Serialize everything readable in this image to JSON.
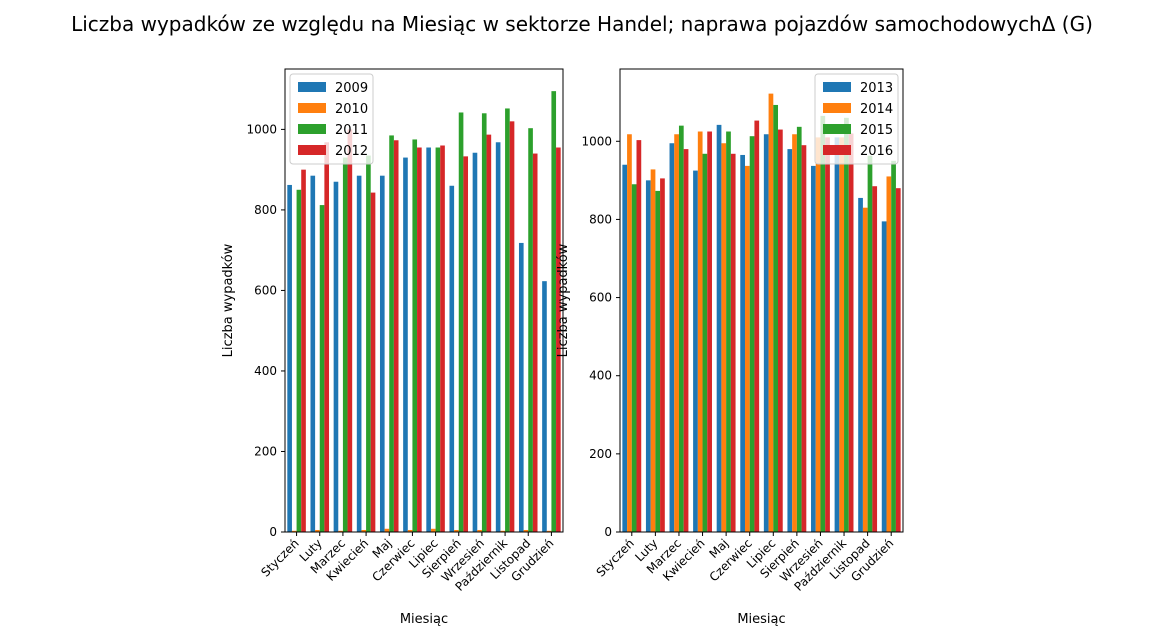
{
  "title": "Liczba wypadków ze względu na Miesiąc w sektorze Handel; naprawa pojazdów samochodowychΔ  (G)",
  "colors": {
    "2009": "#1f77b4",
    "2010": "#ff7f0e",
    "2011": "#2ca02c",
    "2012": "#d62728",
    "2013": "#1f77b4",
    "2014": "#ff7f0e",
    "2015": "#2ca02c",
    "2016": "#d62728"
  },
  "chart_data": [
    {
      "type": "bar",
      "xlabel": "Miesiąc",
      "ylabel": "Liczba wypadków",
      "ylim": [
        0,
        1150
      ],
      "yticks": [
        0,
        200,
        400,
        600,
        800,
        1000
      ],
      "legend_position": "top-left",
      "categories": [
        "Styczeń",
        "Luty",
        "Marzec",
        "Kwiecień",
        "Maj",
        "Czerwiec",
        "Lipiec",
        "Sierpień",
        "Wrzesień",
        "Październik",
        "Listopad",
        "Grudzień"
      ],
      "series": [
        {
          "name": "2009",
          "color": "#1f77b4",
          "values": [
            862,
            885,
            870,
            885,
            885,
            930,
            955,
            860,
            942,
            968,
            718,
            623
          ]
        },
        {
          "name": "2010",
          "color": "#ff7f0e",
          "values": [
            3,
            5,
            3,
            5,
            8,
            5,
            8,
            5,
            5,
            3,
            5,
            3
          ]
        },
        {
          "name": "2011",
          "color": "#2ca02c",
          "values": [
            850,
            812,
            930,
            935,
            985,
            975,
            955,
            1042,
            1040,
            1052,
            1003,
            1095
          ]
        },
        {
          "name": "2012",
          "color": "#d62728",
          "values": [
            900,
            968,
            1000,
            843,
            973,
            955,
            960,
            933,
            987,
            1020,
            940,
            955
          ]
        }
      ]
    },
    {
      "type": "bar",
      "xlabel": "Miesiąc",
      "ylabel": "Liczba wypadków",
      "ylim": [
        0,
        1185
      ],
      "yticks": [
        0,
        200,
        400,
        600,
        800,
        1000
      ],
      "legend_position": "top-right",
      "categories": [
        "Styczeń",
        "Luty",
        "Marzec",
        "Kwiecień",
        "Maj",
        "Czerwiec",
        "Lipiec",
        "Sierpień",
        "Wrzesień",
        "Październik",
        "Listopad",
        "Grudzień"
      ],
      "series": [
        {
          "name": "2013",
          "color": "#1f77b4",
          "values": [
            940,
            900,
            995,
            925,
            1042,
            965,
            1018,
            980,
            937,
            1010,
            855,
            795
          ]
        },
        {
          "name": "2014",
          "color": "#ff7f0e",
          "values": [
            1018,
            928,
            1018,
            1025,
            995,
            937,
            1122,
            1018,
            1010,
            1010,
            830,
            910
          ]
        },
        {
          "name": "2015",
          "color": "#2ca02c",
          "values": [
            890,
            873,
            1040,
            968,
            1025,
            1013,
            1093,
            1037,
            1065,
            1060,
            963,
            950
          ]
        },
        {
          "name": "2016",
          "color": "#d62728",
          "values": [
            1003,
            905,
            980,
            1025,
            968,
            1053,
            1030,
            990,
            1010,
            1020,
            885,
            880
          ]
        }
      ]
    }
  ]
}
